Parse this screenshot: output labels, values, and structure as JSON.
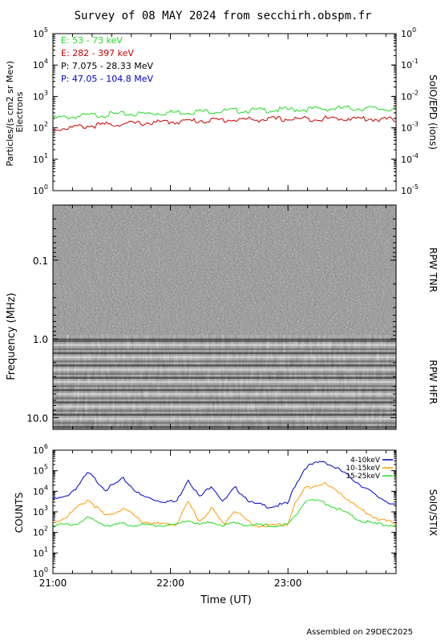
{
  "title": "Survey of 08 MAY 2024 from secchirh.obspm.fr",
  "footer": "Assembled on 29DEC2025",
  "colors": {
    "green": "#22dd22",
    "red": "#cc0000",
    "black": "#000000",
    "blue": "#0000cc",
    "orange": "#ff9900"
  },
  "chart_data": [
    {
      "type": "line",
      "panel": "SoIO/EPD",
      "ylabel_lines": [
        "Particles/(s cm2 sr Mev)",
        "Electrons"
      ],
      "right_label": "SoIO/EPD (ions)",
      "y_scale": "log",
      "ylim": [
        1,
        100000
      ],
      "y_ticks": [
        {
          "base": "10",
          "exp": "0"
        },
        {
          "base": "10",
          "exp": "1"
        },
        {
          "base": "10",
          "exp": "2"
        },
        {
          "base": "10",
          "exp": "3"
        },
        {
          "base": "10",
          "exp": "4"
        },
        {
          "base": "10",
          "exp": "5"
        }
      ],
      "y2_scale": "log",
      "y2lim": [
        1e-05,
        1
      ],
      "y2_ticks": [
        {
          "base": "10",
          "exp": "-5"
        },
        {
          "base": "10",
          "exp": "-4"
        },
        {
          "base": "10",
          "exp": "-3"
        },
        {
          "base": "10",
          "exp": "-2"
        },
        {
          "base": "10",
          "exp": "-1"
        },
        {
          "base": "10",
          "exp": "0"
        }
      ],
      "legend": [
        "E: 53 - 73 keV",
        "E: 282 - 397 keV",
        "P: 7.075 - 28.33 MeV",
        "P: 47.05 - 104.8 MeV"
      ],
      "legend_colors": [
        "#22dd22",
        "#cc0000",
        "#000000",
        "#0000cc"
      ],
      "x_unit": "hours UT",
      "series": [
        {
          "name": "E: 53 - 73 keV",
          "color": "#22dd22",
          "x": [
            21.0,
            21.25,
            21.5,
            21.75,
            22.0,
            22.25,
            22.5,
            22.75,
            23.0,
            23.25,
            23.5,
            23.75,
            23.92
          ],
          "values": [
            200,
            240,
            270,
            280,
            310,
            330,
            350,
            360,
            380,
            400,
            420,
            410,
            400
          ]
        },
        {
          "name": "E: 282 - 397 keV",
          "color": "#cc0000",
          "x": [
            21.0,
            21.25,
            21.5,
            21.75,
            22.0,
            22.25,
            22.5,
            22.75,
            23.0,
            23.25,
            23.5,
            23.75,
            23.92
          ],
          "values": [
            90,
            110,
            130,
            140,
            155,
            170,
            180,
            185,
            190,
            195,
            200,
            190,
            180
          ]
        }
      ]
    },
    {
      "type": "heatmap",
      "panel": "RPW",
      "ylabel": "Frequency (MHz)",
      "y_scale": "log",
      "ylim": [
        0.02,
        14
      ],
      "y_ticks": [
        "0.1",
        "1.0",
        "10.0"
      ],
      "y_tick_values": [
        0.1,
        1.0,
        10.0
      ],
      "right_labels": [
        "RPW TNR",
        "RPW HFR"
      ],
      "boundary_mhz": 1.0
    },
    {
      "type": "line",
      "panel": "SoIO/STIX",
      "ylabel": "COUNTS",
      "right_label": "SoIO/STIX",
      "xlabel": "Time (UT)",
      "x_ticks": [
        "21:00",
        "22:00",
        "23:00"
      ],
      "x_tick_values": [
        21,
        22,
        23
      ],
      "xlim": [
        21.0,
        23.92
      ],
      "y_scale": "log",
      "ylim": [
        1,
        1000000
      ],
      "y_ticks": [
        {
          "base": "10",
          "exp": "0"
        },
        {
          "base": "10",
          "exp": "1"
        },
        {
          "base": "10",
          "exp": "2"
        },
        {
          "base": "10",
          "exp": "3"
        },
        {
          "base": "10",
          "exp": "4"
        },
        {
          "base": "10",
          "exp": "5"
        },
        {
          "base": "10",
          "exp": "6"
        }
      ],
      "legend": [
        "4-10keV",
        "10-15keV",
        "15-25keV"
      ],
      "legend_colors": [
        "#0000cc",
        "#ff9900",
        "#22dd22"
      ],
      "series": [
        {
          "name": "4-10keV",
          "color": "#0000cc",
          "x": [
            21.0,
            21.1,
            21.2,
            21.3,
            21.45,
            21.6,
            21.75,
            21.9,
            22.05,
            22.15,
            22.25,
            22.35,
            22.45,
            22.55,
            22.7,
            22.85,
            23.0,
            23.05,
            23.15,
            23.3,
            23.45,
            23.6,
            23.75,
            23.92
          ],
          "values": [
            4000,
            5000,
            15000,
            80000,
            12000,
            40000,
            6000,
            3500,
            3000,
            40000,
            5000,
            20000,
            3000,
            15000,
            2500,
            1800,
            2500,
            15000,
            150000,
            300000,
            100000,
            25000,
            6000,
            2000
          ]
        },
        {
          "name": "10-15keV",
          "color": "#ff9900",
          "x": [
            21.0,
            21.1,
            21.2,
            21.3,
            21.45,
            21.6,
            21.75,
            21.9,
            22.05,
            22.15,
            22.25,
            22.35,
            22.45,
            22.55,
            22.7,
            22.85,
            23.0,
            23.05,
            23.15,
            23.3,
            23.45,
            23.6,
            23.75,
            23.92
          ],
          "values": [
            300,
            500,
            1500,
            4000,
            600,
            1500,
            350,
            250,
            250,
            3000,
            350,
            1500,
            250,
            1200,
            220,
            200,
            250,
            2000,
            15000,
            25000,
            8000,
            1500,
            500,
            250
          ]
        },
        {
          "name": "15-25keV",
          "color": "#22dd22",
          "x": [
            21.0,
            21.1,
            21.2,
            21.3,
            21.45,
            21.6,
            21.75,
            21.9,
            22.05,
            22.15,
            22.25,
            22.35,
            22.45,
            22.55,
            22.7,
            22.85,
            23.0,
            23.05,
            23.15,
            23.3,
            23.45,
            23.6,
            23.75,
            23.92
          ],
          "values": [
            220,
            230,
            260,
            500,
            230,
            250,
            220,
            220,
            220,
            400,
            230,
            300,
            220,
            280,
            220,
            220,
            230,
            500,
            4000,
            3000,
            1200,
            400,
            250,
            220
          ]
        }
      ]
    }
  ]
}
